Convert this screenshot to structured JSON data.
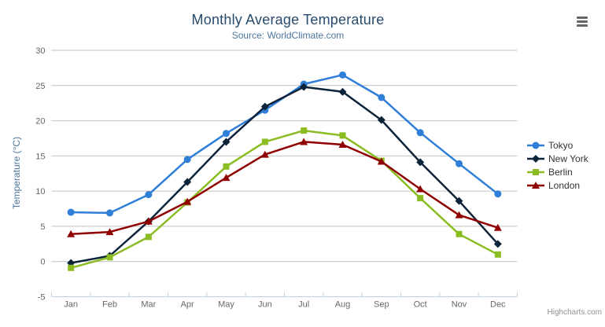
{
  "chart": {
    "title": "Monthly Average Temperature",
    "subtitle": "Source: WorldClimate.com",
    "credits": "Highcharts.com",
    "export_menu_icon": "hamburger-menu",
    "colors": {
      "title": "#274b6d",
      "subtitle": "#4d759e",
      "axis_title": "#4d759e",
      "axis_labels": "#666666",
      "grid": "#C0C0C0",
      "axis_line": "#C0D0E0",
      "legend_text": "#333333",
      "credits_text": "#909090",
      "menu_icon": "#666666"
    }
  },
  "chart_data": {
    "type": "line",
    "title": "Monthly Average Temperature",
    "subtitle": "Source: WorldClimate.com",
    "xlabel": "",
    "ylabel": "Temperature (°C)",
    "ylim": [
      -5,
      30
    ],
    "yticks": [
      -5,
      0,
      5,
      10,
      15,
      20,
      25,
      30
    ],
    "grid": true,
    "legend_position": "right",
    "categories": [
      "Jan",
      "Feb",
      "Mar",
      "Apr",
      "May",
      "Jun",
      "Jul",
      "Aug",
      "Sep",
      "Oct",
      "Nov",
      "Dec"
    ],
    "series": [
      {
        "name": "Tokyo",
        "color": "#2f7ed8",
        "marker": "circle",
        "values": [
          7.0,
          6.9,
          9.5,
          14.5,
          18.2,
          21.5,
          25.2,
          26.5,
          23.3,
          18.3,
          13.9,
          9.6
        ]
      },
      {
        "name": "New York",
        "color": "#0d233a",
        "marker": "diamond",
        "values": [
          -0.2,
          0.8,
          5.7,
          11.3,
          17.0,
          22.0,
          24.8,
          24.1,
          20.1,
          14.1,
          8.6,
          2.5
        ]
      },
      {
        "name": "Berlin",
        "color": "#8bbc21",
        "marker": "square",
        "values": [
          -0.9,
          0.6,
          3.5,
          8.4,
          13.5,
          17.0,
          18.6,
          17.9,
          14.3,
          9.0,
          3.9,
          1.0
        ]
      },
      {
        "name": "London",
        "color": "#910000",
        "marker": "triangle",
        "values": [
          3.9,
          4.2,
          5.7,
          8.5,
          11.9,
          15.2,
          17.0,
          16.6,
          14.2,
          10.3,
          6.6,
          4.8
        ]
      }
    ]
  }
}
